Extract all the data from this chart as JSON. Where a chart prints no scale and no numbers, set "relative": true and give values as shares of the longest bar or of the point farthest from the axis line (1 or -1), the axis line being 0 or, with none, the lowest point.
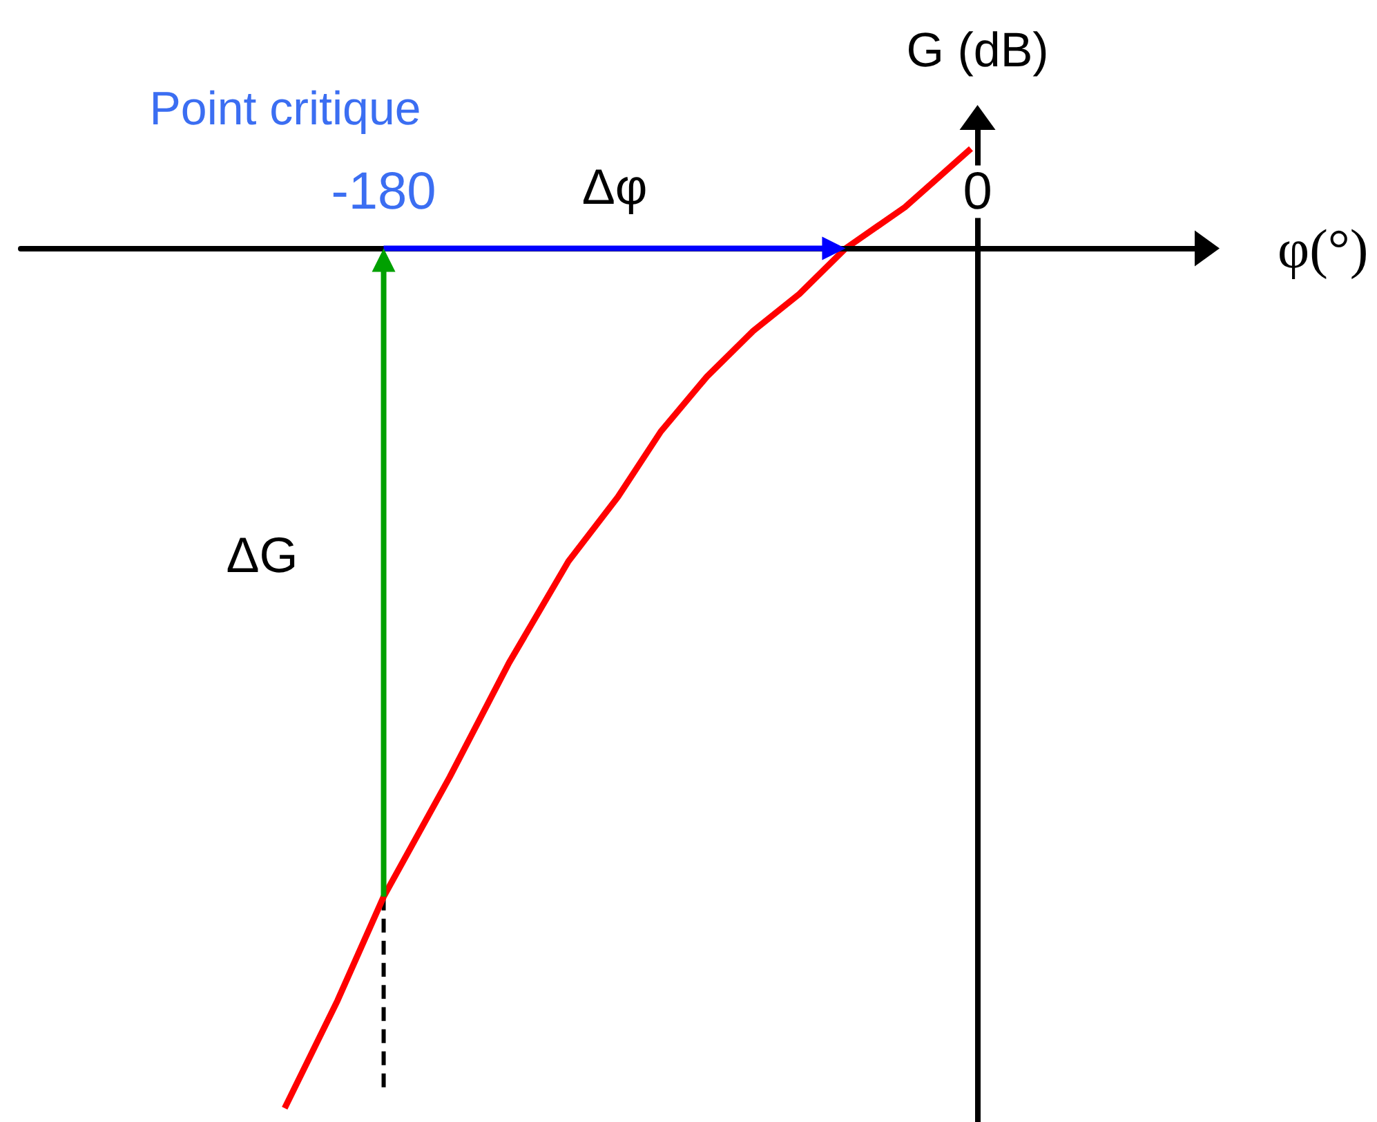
{
  "chart_data": {
    "type": "line",
    "relative": true,
    "xlabel": "φ(°)",
    "ylabel": "G (dB)",
    "xlim": [
      -290,
      70
    ],
    "xticks": [
      -180,
      0
    ],
    "annotations": [
      "Point critique",
      "Δφ",
      "ΔG"
    ],
    "series": [
      {
        "color": "#ff0000",
        "x": [
          -210,
          -194,
          -180,
          -160,
          -142,
          -124,
          -109,
          -96,
          -82,
          -68,
          -54,
          -40,
          -22,
          -2
        ],
        "values": [
          -1,
          -0.875,
          -0.754,
          -0.615,
          -0.482,
          -0.364,
          -0.289,
          -0.213,
          -0.149,
          -0.096,
          -0.053,
          0,
          0.048,
          0.116
        ]
      },
      {
        "color": "#000000",
        "x": [
          -180,
          -180
        ],
        "values": [
          -0.754,
          -0.98
        ],
        "line_style": "dashed"
      }
    ]
  }
}
